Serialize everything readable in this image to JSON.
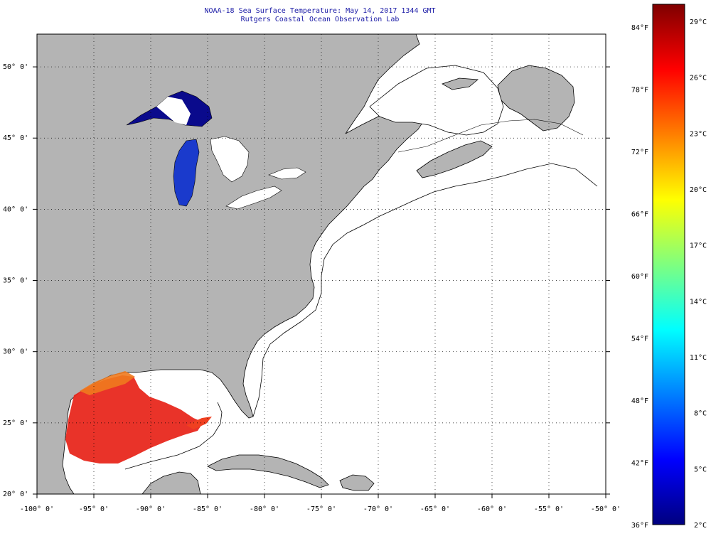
{
  "title": {
    "line1": "NOAA-18 Sea Surface Temperature:  May 14, 2017 1344 GMT",
    "line2": "Rutgers Coastal Ocean Observation Lab"
  },
  "map": {
    "lon_range": [
      -100,
      -50
    ],
    "lat_range": [
      20,
      52
    ],
    "lon_ticks": [
      -100,
      -95,
      -90,
      -85,
      -80,
      -75,
      -70,
      -65,
      -60,
      -55,
      -50
    ],
    "lon_tick_labels": [
      "-100° 0'",
      "-95° 0'",
      "-90° 0'",
      "-85° 0'",
      "-80° 0'",
      "-75° 0'",
      "-70° 0'",
      "-65° 0'",
      "-60° 0'",
      "-55° 0'",
      "-50° 0'"
    ],
    "lat_ticks": [
      20,
      25,
      30,
      35,
      40,
      45,
      50
    ],
    "lat_tick_labels": [
      "20° 0'",
      "25° 0'",
      "30° 0'",
      "35° 0'",
      "40° 0'",
      "45° 0'",
      "50° 0'"
    ],
    "grid": "dotted",
    "land_color": "#b4b4b4",
    "ocean_nodata_color": "#ffffff"
  },
  "colorbar": {
    "colors": [
      "#00007f",
      "#0000ff",
      "#007fff",
      "#00ffff",
      "#7fff7f",
      "#ffff00",
      "#ff7f00",
      "#ff0000",
      "#7f0000"
    ],
    "fahrenheit_labels": [
      "36°F",
      "42°F",
      "48°F",
      "54°F",
      "60°F",
      "66°F",
      "72°F",
      "78°F",
      "84°F"
    ],
    "celsius_labels": [
      "2°C",
      "5°C",
      "8°C",
      "11°C",
      "14°C",
      "17°C",
      "20°C",
      "23°C",
      "26°C",
      "29°C"
    ]
  }
}
